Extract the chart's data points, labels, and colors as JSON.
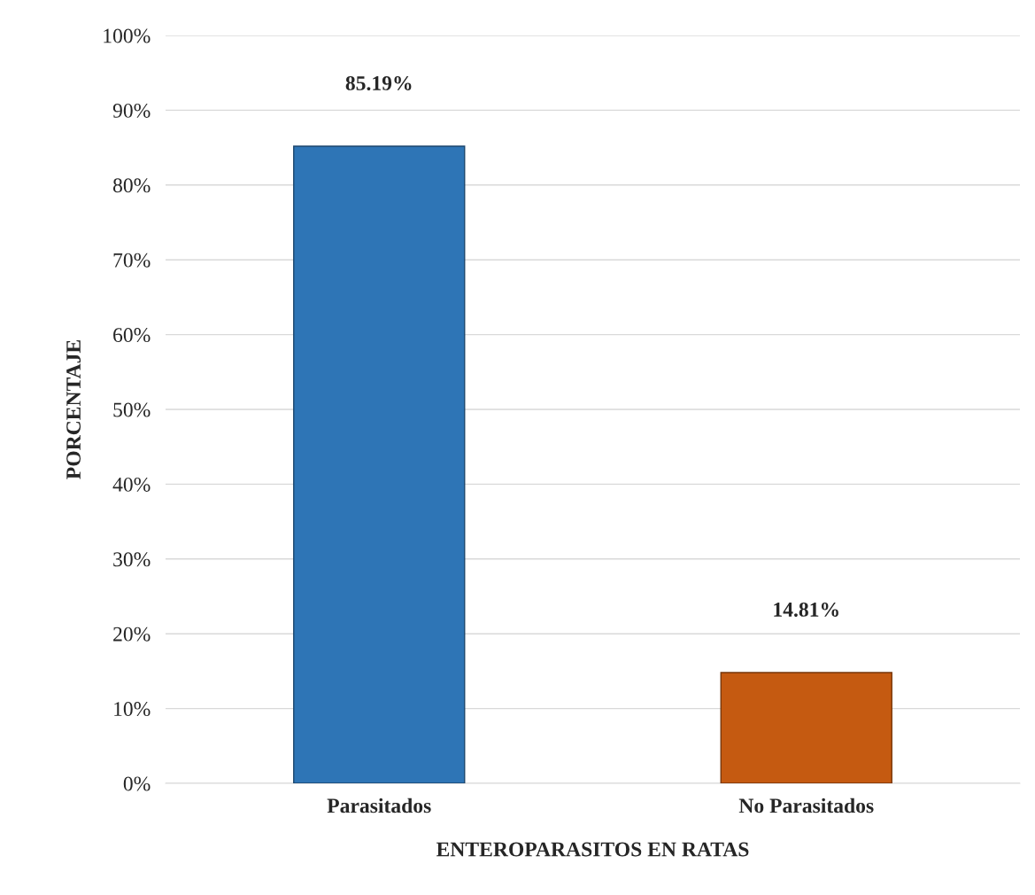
{
  "chart_data": {
    "type": "bar",
    "xlabel": "ENTEROPARASITOS EN RATAS",
    "ylabel": "PORCENTAJE",
    "categories": [
      "Parasitados",
      "No Parasitados"
    ],
    "values": [
      85.19,
      14.81
    ],
    "colors": [
      "#2e75b6",
      "#c55a11"
    ],
    "value_labels": [
      "85.19%",
      "14.81%"
    ],
    "ylim": [
      0,
      100
    ],
    "yticks": [
      {
        "value": 0,
        "label": "0%"
      },
      {
        "value": 10,
        "label": "10%"
      },
      {
        "value": 20,
        "label": "20%"
      },
      {
        "value": 30,
        "label": "30%"
      },
      {
        "value": 40,
        "label": "40%"
      },
      {
        "value": 50,
        "label": "50%"
      },
      {
        "value": 60,
        "label": "60%"
      },
      {
        "value": 70,
        "label": "70%"
      },
      {
        "value": 80,
        "label": "80%"
      },
      {
        "value": 90,
        "label": "90%"
      },
      {
        "value": 100,
        "label": "100%"
      }
    ],
    "grid": "y",
    "legend": false
  }
}
